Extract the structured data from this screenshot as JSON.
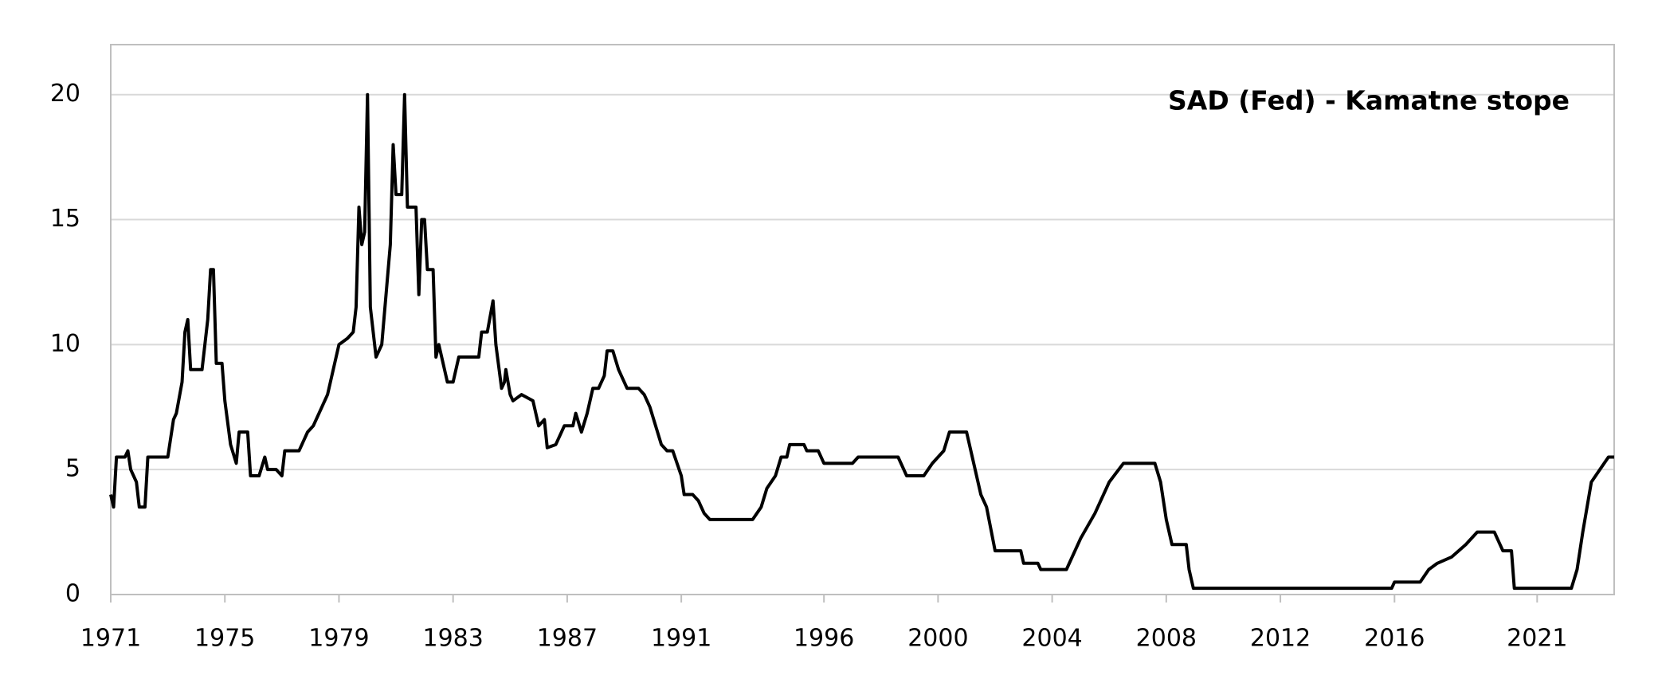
{
  "chart_data": {
    "type": "line",
    "title": "SAD (Fed) - Kamatne stope",
    "color": "#000000",
    "grid": true,
    "xlim": [
      1971,
      2023.7
    ],
    "ylim": [
      0,
      22
    ],
    "xticks": [
      1971,
      1975,
      1979,
      1983,
      1987,
      1991,
      1996,
      2000,
      2004,
      2008,
      2012,
      2016,
      2021
    ],
    "yticks": [
      0,
      5,
      10,
      15,
      20
    ],
    "x": [
      1971,
      1971.1,
      1971.2,
      1971.5,
      1971.6,
      1971.7,
      1971.9,
      1972.0,
      1972.2,
      1972.3,
      1973.0,
      1973.2,
      1973.3,
      1973.5,
      1973.6,
      1973.7,
      1973.8,
      1974.2,
      1974.4,
      1974.5,
      1974.6,
      1974.7,
      1974.9,
      1975.0,
      1975.2,
      1975.4,
      1975.5,
      1975.8,
      1975.9,
      1976.2,
      1976.4,
      1976.5,
      1976.8,
      1977.0,
      1977.1,
      1977.6,
      1977.9,
      1978.1,
      1978.4,
      1978.6,
      1978.8,
      1979.0,
      1979.3,
      1979.5,
      1979.6,
      1979.7,
      1979.8,
      1979.9,
      1980.0,
      1980.1,
      1980.3,
      1980.5,
      1980.8,
      1980.9,
      1981.0,
      1981.2,
      1981.3,
      1981.4,
      1981.7,
      1981.8,
      1981.9,
      1982.0,
      1982.1,
      1982.3,
      1982.4,
      1982.5,
      1982.8,
      1983.0,
      1983.2,
      1983.9,
      1984.0,
      1984.2,
      1984.4,
      1984.5,
      1984.7,
      1984.8,
      1984.85,
      1985.0,
      1985.1,
      1985.4,
      1985.8,
      1986.0,
      1986.2,
      1986.3,
      1986.6,
      1986.9,
      1987.2,
      1987.3,
      1987.5,
      1987.7,
      1987.9,
      1988.1,
      1988.3,
      1988.4,
      1988.6,
      1988.8,
      1989.0,
      1989.1,
      1989.5,
      1989.7,
      1989.9,
      1990.1,
      1990.3,
      1990.5,
      1990.7,
      1991.0,
      1991.1,
      1991.4,
      1991.6,
      1991.8,
      1992.0,
      1993.5,
      1993.8,
      1994.0,
      1994.3,
      1994.5,
      1994.7,
      1994.8,
      1995.3,
      1995.4,
      1995.8,
      1996.0,
      1997.0,
      1997.2,
      1998.6,
      1998.9,
      1999.5,
      1999.8,
      2000.2,
      2000.4,
      2001.0,
      2001.2,
      2001.5,
      2001.7,
      2002.0,
      2002.9,
      2003.0,
      2003.5,
      2003.6,
      2004.5,
      2005.0,
      2005.5,
      2006.0,
      2006.5,
      2007.6,
      2007.8,
      2008.0,
      2008.2,
      2008.7,
      2008.8,
      2008.95,
      2015.9,
      2016.0,
      2016.9,
      2017.2,
      2017.5,
      2018.0,
      2018.5,
      2018.9,
      2019.5,
      2019.7,
      2019.8,
      2020.1,
      2020.2,
      2022.2,
      2022.4,
      2022.6,
      2022.9,
      2023.2,
      2023.5,
      2023.7
    ],
    "values": [
      4.0,
      3.5,
      5.5,
      5.5,
      5.75,
      5.0,
      4.5,
      3.5,
      3.5,
      5.5,
      5.5,
      7,
      7.25,
      8.5,
      10.5,
      11,
      9,
      9,
      11,
      13,
      13,
      9.25,
      9.25,
      7.75,
      6,
      5.25,
      6.5,
      6.5,
      4.75,
      4.75,
      5.5,
      5.0,
      5.0,
      4.75,
      5.75,
      5.75,
      6.5,
      6.75,
      7.5,
      8.0,
      9.0,
      10.0,
      10.25,
      10.5,
      11.5,
      15.5,
      14,
      14.5,
      20,
      11.5,
      9.5,
      10,
      14,
      18,
      16,
      16,
      20,
      15.5,
      15.5,
      12,
      15,
      15,
      13,
      13,
      9.5,
      10,
      8.5,
      8.5,
      9.5,
      9.5,
      10.5,
      10.5,
      11.75,
      10,
      8.25,
      8.5,
      9,
      8,
      7.75,
      8,
      7.75,
      6.75,
      7,
      5.875,
      6,
      6.75,
      6.75,
      7.25,
      6.5,
      7.25,
      8.25,
      8.25,
      8.75,
      9.75,
      9.75,
      9,
      8.5,
      8.25,
      8.25,
      8,
      7.5,
      6.75,
      6,
      5.75,
      5.75,
      4.75,
      4,
      4,
      3.75,
      3.25,
      3,
      3,
      3.5,
      4.25,
      4.75,
      5.5,
      5.5,
      6,
      6,
      5.75,
      5.75,
      5.25,
      5.25,
      5.5,
      5.5,
      4.75,
      4.75,
      5.25,
      5.75,
      6.5,
      6.5,
      5.5,
      4.0,
      3.5,
      1.75,
      1.75,
      1.25,
      1.25,
      1.0,
      1.0,
      2.25,
      3.25,
      4.5,
      5.25,
      5.25,
      4.5,
      3.0,
      2.0,
      2.0,
      1.0,
      0.25,
      0.25,
      0.5,
      0.5,
      1.0,
      1.25,
      1.5,
      2.0,
      2.5,
      2.5,
      2.0,
      1.75,
      1.75,
      0.25,
      0.25,
      1.0,
      2.5,
      4.5,
      5.0,
      5.5,
      5.5
    ]
  }
}
